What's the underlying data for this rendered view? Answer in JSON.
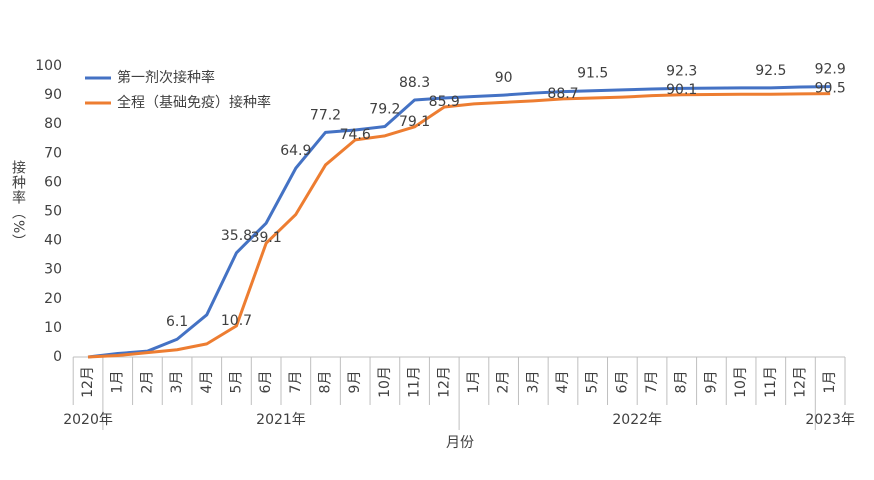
{
  "chart_data": {
    "type": "line",
    "y_label": "接种率（%）",
    "x_label": "月份",
    "categories": [
      "12月",
      "1月",
      "2月",
      "3月",
      "4月",
      "5月",
      "6月",
      "7月",
      "8月",
      "9月",
      "10月",
      "11月",
      "12月",
      "1月",
      "2月",
      "3月",
      "4月",
      "5月",
      "6月",
      "7月",
      "8月",
      "9月",
      "10月",
      "11月",
      "12月",
      "1月"
    ],
    "year_labels": [
      "2020年",
      "2021年",
      "2022年",
      "2023年"
    ],
    "series": [
      {
        "name": "第一剂次接种率",
        "color": "#4472c4",
        "values": [
          0,
          1.2,
          2,
          6.1,
          14.5,
          35.8,
          46,
          64.9,
          77.2,
          78,
          79.2,
          88.3,
          89,
          89.5,
          90,
          90.7,
          91.2,
          91.5,
          91.8,
          92.1,
          92.3,
          92.4,
          92.5,
          92.5,
          92.8,
          92.9
        ],
        "value_labels": [
          null,
          null,
          null,
          "6.1",
          null,
          "35.8",
          null,
          "64.9",
          "77.2",
          null,
          "79.2",
          "88.3",
          null,
          null,
          "90",
          null,
          null,
          "91.5",
          null,
          null,
          "92.3",
          null,
          null,
          "92.5",
          null,
          "92.9"
        ]
      },
      {
        "name": "全程（基础免疫）接种率",
        "color": "#ed7d31",
        "values": [
          0,
          0.5,
          1.5,
          2.5,
          4.5,
          10.7,
          39.1,
          49,
          66,
          74.6,
          76,
          79.1,
          85.9,
          87,
          87.5,
          88,
          88.7,
          89,
          89.3,
          89.8,
          90.1,
          90.2,
          90.3,
          90.3,
          90.4,
          90.5
        ],
        "value_labels": [
          null,
          null,
          null,
          null,
          null,
          "10.7",
          "39.1",
          null,
          null,
          "74.6",
          null,
          "79.1",
          "85.9",
          null,
          null,
          null,
          "88.7",
          null,
          null,
          null,
          "90.1",
          null,
          null,
          null,
          null,
          "90.5"
        ]
      }
    ],
    "ylim": [
      0,
      100
    ],
    "yticks": [
      0,
      10,
      20,
      30,
      40,
      50,
      60,
      70,
      80,
      90,
      100
    ],
    "legend": "top-left",
    "grid": false
  }
}
